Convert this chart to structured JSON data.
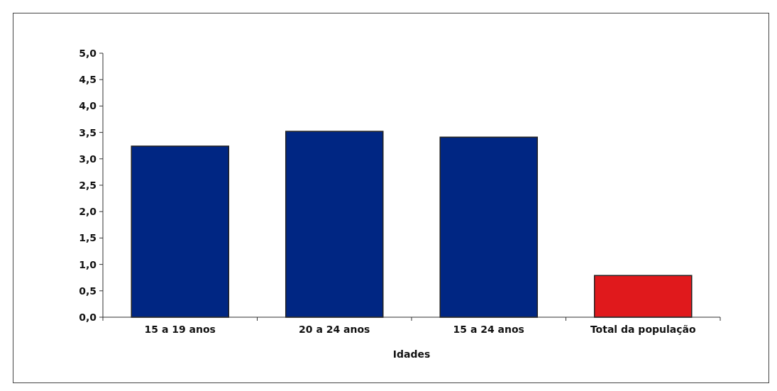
{
  "chart_data": {
    "type": "bar",
    "xlabel": "Idades",
    "categories": [
      "15 a 19 anos",
      "20 a 24 anos",
      "15 a 24 anos",
      "Total da população"
    ],
    "values": [
      3.24,
      3.52,
      3.41,
      0.79
    ],
    "colors": [
      "#002683",
      "#002683",
      "#002683",
      "#e0191c"
    ],
    "ylim": [
      0,
      5
    ],
    "yticks": [
      {
        "value": 0,
        "label": "0,0"
      },
      {
        "value": 0.5,
        "label": "0,5"
      },
      {
        "value": 1,
        "label": "1,0"
      },
      {
        "value": 1.5,
        "label": "1,5"
      },
      {
        "value": 2,
        "label": "2,0"
      },
      {
        "value": 2.5,
        "label": "2,5"
      },
      {
        "value": 3,
        "label": "3,0"
      },
      {
        "value": 3.5,
        "label": "3,5"
      },
      {
        "value": 4,
        "label": "4,0"
      },
      {
        "value": 4.5,
        "label": "4,5"
      },
      {
        "value": 5,
        "label": "5,0"
      }
    ],
    "grid": false
  }
}
